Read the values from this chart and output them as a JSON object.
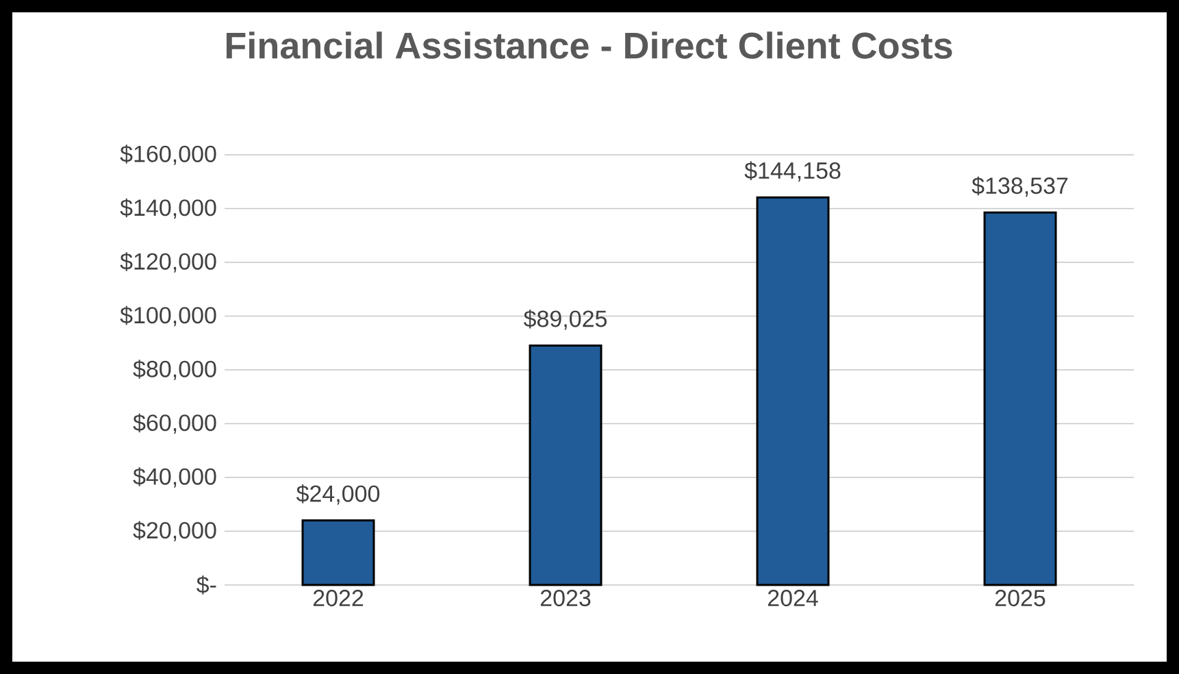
{
  "chart_data": {
    "type": "bar",
    "title": "Financial Assistance - Direct Client Costs",
    "categories": [
      "2022",
      "2023",
      "2024",
      "2025"
    ],
    "values": [
      24000,
      89025,
      144158,
      138537
    ],
    "value_labels": [
      "$24,000",
      "$89,025",
      "$144,158",
      "$138,537"
    ],
    "color": "#215c98",
    "ylim": [
      0,
      160000
    ],
    "yticks": [
      {
        "value": 0,
        "label": "$-"
      },
      {
        "value": 20000,
        "label": "$20,000"
      },
      {
        "value": 40000,
        "label": "$40,000"
      },
      {
        "value": 60000,
        "label": "$60,000"
      },
      {
        "value": 80000,
        "label": "$80,000"
      },
      {
        "value": 100000,
        "label": "$100,000"
      },
      {
        "value": 120000,
        "label": "$120,000"
      },
      {
        "value": 140000,
        "label": "$140,000"
      },
      {
        "value": 160000,
        "label": "$160,000"
      }
    ],
    "grid": "y"
  }
}
